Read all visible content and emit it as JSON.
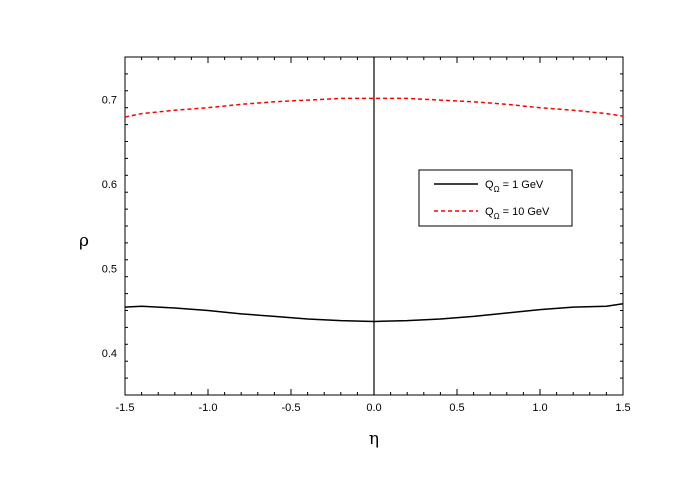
{
  "chart_data": {
    "type": "line",
    "xlabel": "η",
    "ylabel": "ρ",
    "xlim": [
      -1.5,
      1.5
    ],
    "ylim": [
      0.35,
      0.75
    ],
    "x_major_ticks": [
      -1.5,
      -1.0,
      -0.5,
      0.0,
      0.5,
      1.0,
      1.5
    ],
    "x_tick_labels": [
      "-1.5",
      "-1.0",
      "-0.5",
      "0.0",
      "0.5",
      "1.0",
      "1.5"
    ],
    "x_minor_step": 0.1,
    "y_major_ticks": [
      0.4,
      0.5,
      0.6,
      0.7
    ],
    "y_tick_labels": [
      "0.4",
      "0.5",
      "0.6",
      "0.7"
    ],
    "y_minor_step": 0.02,
    "grid": false,
    "legend_position": "middle-right",
    "reference_line_x": 0.0,
    "series": [
      {
        "legend_main": "Q",
        "legend_sub": "Ω",
        "legend_rest": " = 1 GeV",
        "color": "#000000",
        "dash": "solid",
        "x": [
          -1.5,
          -1.4,
          -1.2,
          -1.0,
          -0.8,
          -0.6,
          -0.4,
          -0.2,
          0.0,
          0.2,
          0.4,
          0.6,
          0.8,
          1.0,
          1.2,
          1.4,
          1.5
        ],
        "y": [
          0.454,
          0.455,
          0.453,
          0.45,
          0.446,
          0.443,
          0.44,
          0.438,
          0.437,
          0.438,
          0.44,
          0.443,
          0.447,
          0.451,
          0.454,
          0.455,
          0.458
        ]
      },
      {
        "legend_main": "Q",
        "legend_sub": "Ω",
        "legend_rest": " = 10 GeV",
        "color": "#ff0000",
        "dash": "dashed",
        "x": [
          -1.5,
          -1.4,
          -1.2,
          -1.0,
          -0.8,
          -0.6,
          -0.4,
          -0.2,
          0.0,
          0.2,
          0.4,
          0.6,
          0.8,
          1.0,
          1.2,
          1.4,
          1.5
        ],
        "y": [
          0.679,
          0.683,
          0.687,
          0.69,
          0.694,
          0.697,
          0.699,
          0.701,
          0.701,
          0.701,
          0.699,
          0.697,
          0.694,
          0.69,
          0.687,
          0.683,
          0.68
        ]
      }
    ]
  }
}
